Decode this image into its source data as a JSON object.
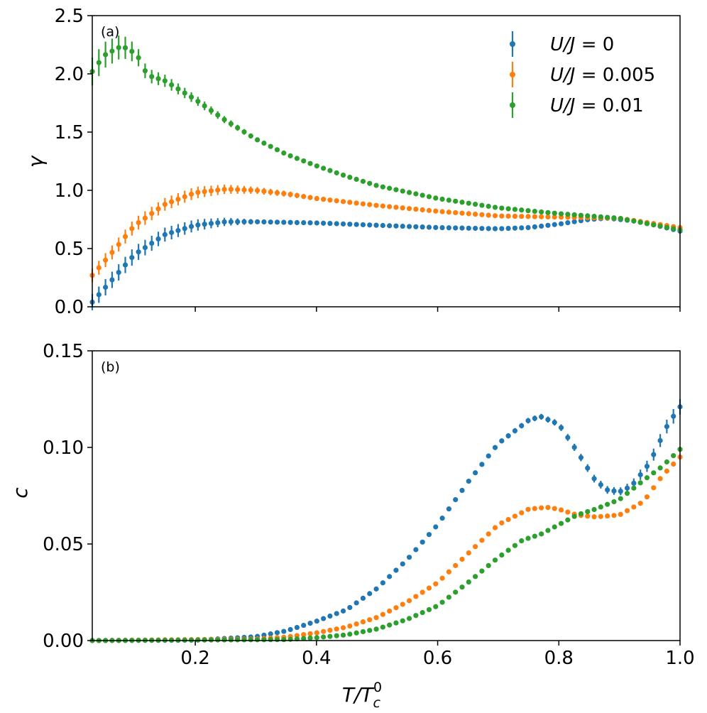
{
  "chart_data": [
    {
      "type": "scatter",
      "panel_label": "(a)",
      "ylabel": "γ",
      "xlim": [
        0.03,
        1.0
      ],
      "ylim": [
        0.0,
        2.5
      ],
      "yticks": [
        0.0,
        0.5,
        1.0,
        1.5,
        2.0,
        2.5
      ],
      "ytick_labels": [
        "0.0",
        "0.5",
        "1.0",
        "1.5",
        "2.0",
        "2.5"
      ],
      "xticks": [
        0.2,
        0.4,
        0.6,
        0.8,
        1.0
      ],
      "show_xtick_labels": false,
      "legend": {
        "placement": "top-right",
        "entries": [
          {
            "name": "U/J = 0",
            "text_italic": "U/J",
            "text_rest": " = 0",
            "color": "#1f77b4"
          },
          {
            "name": "U/J = 0.005",
            "text_italic": "U/J",
            "text_rest": " = 0.005",
            "color": "#ff7f0e"
          },
          {
            "name": "U/J = 0.01",
            "text_italic": "U/J",
            "text_rest": " = 0.01",
            "color": "#2ca02c"
          }
        ]
      },
      "series": [
        {
          "name": "U/J = 0",
          "color": "#1f77b4",
          "points": [
            [
              0.03,
              0.04
            ],
            [
              0.1,
              0.45
            ],
            [
              0.15,
              0.62
            ],
            [
              0.2,
              0.7
            ],
            [
              0.25,
              0.73
            ],
            [
              0.3,
              0.73
            ],
            [
              0.4,
              0.72
            ],
            [
              0.5,
              0.7
            ],
            [
              0.6,
              0.68
            ],
            [
              0.7,
              0.67
            ],
            [
              0.75,
              0.68
            ],
            [
              0.8,
              0.71
            ],
            [
              0.85,
              0.75
            ],
            [
              0.88,
              0.76
            ],
            [
              0.92,
              0.74
            ],
            [
              0.96,
              0.7
            ],
            [
              1.0,
              0.65
            ]
          ],
          "err": [
            [
              0.03,
              0.07
            ],
            [
              0.1,
              0.07
            ],
            [
              0.2,
              0.05
            ],
            [
              0.3,
              0.02
            ],
            [
              0.5,
              0.01
            ],
            [
              1.0,
              0.01
            ]
          ]
        },
        {
          "name": "U/J = 0.005",
          "color": "#ff7f0e",
          "points": [
            [
              0.03,
              0.27
            ],
            [
              0.06,
              0.45
            ],
            [
              0.1,
              0.7
            ],
            [
              0.15,
              0.88
            ],
            [
              0.2,
              0.98
            ],
            [
              0.25,
              1.01
            ],
            [
              0.3,
              1.0
            ],
            [
              0.35,
              0.97
            ],
            [
              0.4,
              0.93
            ],
            [
              0.5,
              0.87
            ],
            [
              0.6,
              0.82
            ],
            [
              0.7,
              0.78
            ],
            [
              0.8,
              0.77
            ],
            [
              0.9,
              0.76
            ],
            [
              1.0,
              0.68
            ]
          ],
          "err": [
            [
              0.03,
              0.06
            ],
            [
              0.1,
              0.06
            ],
            [
              0.2,
              0.05
            ],
            [
              0.3,
              0.03
            ],
            [
              0.4,
              0.02
            ],
            [
              1.0,
              0.01
            ]
          ]
        },
        {
          "name": "U/J = 0.01",
          "color": "#2ca02c",
          "points": [
            [
              0.03,
              2.02
            ],
            [
              0.05,
              2.16
            ],
            [
              0.075,
              2.23
            ],
            [
              0.09,
              2.22
            ],
            [
              0.11,
              2.12
            ],
            [
              0.12,
              1.99
            ],
            [
              0.15,
              1.94
            ],
            [
              0.2,
              1.78
            ],
            [
              0.25,
              1.6
            ],
            [
              0.3,
              1.44
            ],
            [
              0.35,
              1.31
            ],
            [
              0.4,
              1.21
            ],
            [
              0.45,
              1.12
            ],
            [
              0.5,
              1.04
            ],
            [
              0.6,
              0.93
            ],
            [
              0.7,
              0.85
            ],
            [
              0.8,
              0.8
            ],
            [
              0.9,
              0.76
            ],
            [
              1.0,
              0.66
            ]
          ],
          "err": [
            [
              0.03,
              0.12
            ],
            [
              0.08,
              0.1
            ],
            [
              0.12,
              0.06
            ],
            [
              0.2,
              0.04
            ],
            [
              0.3,
              0.02
            ],
            [
              0.5,
              0.01
            ],
            [
              1.0,
              0.01
            ]
          ]
        }
      ]
    },
    {
      "type": "scatter",
      "panel_label": "(b)",
      "ylabel": "c",
      "xlabel": "T/T_c^0",
      "xlabel_main": "T/T",
      "xlabel_sub": "c",
      "xlabel_sup": "0",
      "xlim": [
        0.03,
        1.0
      ],
      "ylim": [
        0.0,
        0.15
      ],
      "yticks": [
        0.0,
        0.05,
        0.1,
        0.15
      ],
      "ytick_labels": [
        "0.00",
        "0.05",
        "0.10",
        "0.15"
      ],
      "xticks": [
        0.2,
        0.4,
        0.6,
        0.8,
        1.0
      ],
      "xtick_labels": [
        "0.2",
        "0.4",
        "0.6",
        "0.8",
        "1.0"
      ],
      "series": [
        {
          "name": "U/J = 0",
          "color": "#1f77b4",
          "points": [
            [
              0.03,
              0.0
            ],
            [
              0.2,
              0.0002
            ],
            [
              0.3,
              0.002
            ],
            [
              0.35,
              0.005
            ],
            [
              0.4,
              0.01
            ],
            [
              0.45,
              0.016
            ],
            [
              0.5,
              0.027
            ],
            [
              0.55,
              0.042
            ],
            [
              0.6,
              0.06
            ],
            [
              0.65,
              0.082
            ],
            [
              0.7,
              0.102
            ],
            [
              0.75,
              0.114
            ],
            [
              0.77,
              0.116
            ],
            [
              0.8,
              0.112
            ],
            [
              0.83,
              0.098
            ],
            [
              0.86,
              0.083
            ],
            [
              0.88,
              0.078
            ],
            [
              0.9,
              0.077
            ],
            [
              0.92,
              0.08
            ],
            [
              0.95,
              0.092
            ],
            [
              0.98,
              0.112
            ],
            [
              1.0,
              0.121
            ]
          ],
          "err": [
            [
              0.03,
              0.0005
            ],
            [
              0.6,
              0.001
            ],
            [
              0.77,
              0.0015
            ],
            [
              0.85,
              0.002
            ],
            [
              0.9,
              0.002
            ],
            [
              1.0,
              0.004
            ]
          ]
        },
        {
          "name": "U/J = 0.005",
          "color": "#ff7f0e",
          "points": [
            [
              0.03,
              0.0
            ],
            [
              0.3,
              0.0008
            ],
            [
              0.35,
              0.0018
            ],
            [
              0.4,
              0.004
            ],
            [
              0.45,
              0.007
            ],
            [
              0.5,
              0.012
            ],
            [
              0.55,
              0.02
            ],
            [
              0.6,
              0.03
            ],
            [
              0.65,
              0.045
            ],
            [
              0.7,
              0.06
            ],
            [
              0.75,
              0.068
            ],
            [
              0.78,
              0.069
            ],
            [
              0.8,
              0.068
            ],
            [
              0.83,
              0.065
            ],
            [
              0.86,
              0.064
            ],
            [
              0.9,
              0.065
            ],
            [
              0.94,
              0.072
            ],
            [
              0.97,
              0.085
            ],
            [
              1.0,
              0.095
            ]
          ],
          "err": [
            [
              0.03,
              0.0003
            ],
            [
              0.7,
              0.0008
            ],
            [
              1.0,
              0.0012
            ]
          ]
        },
        {
          "name": "U/J = 0.01",
          "color": "#2ca02c",
          "points": [
            [
              0.03,
              0.0
            ],
            [
              0.35,
              0.0005
            ],
            [
              0.4,
              0.0015
            ],
            [
              0.45,
              0.003
            ],
            [
              0.5,
              0.006
            ],
            [
              0.55,
              0.011
            ],
            [
              0.6,
              0.018
            ],
            [
              0.65,
              0.03
            ],
            [
              0.7,
              0.043
            ],
            [
              0.74,
              0.052
            ],
            [
              0.77,
              0.055
            ],
            [
              0.8,
              0.06
            ],
            [
              0.83,
              0.065
            ],
            [
              0.86,
              0.068
            ],
            [
              0.9,
              0.073
            ],
            [
              0.94,
              0.083
            ],
            [
              0.97,
              0.09
            ],
            [
              1.0,
              0.099
            ]
          ],
          "err": [
            [
              0.03,
              0.0003
            ],
            [
              0.7,
              0.0008
            ],
            [
              1.0,
              0.0012
            ]
          ]
        }
      ]
    }
  ]
}
